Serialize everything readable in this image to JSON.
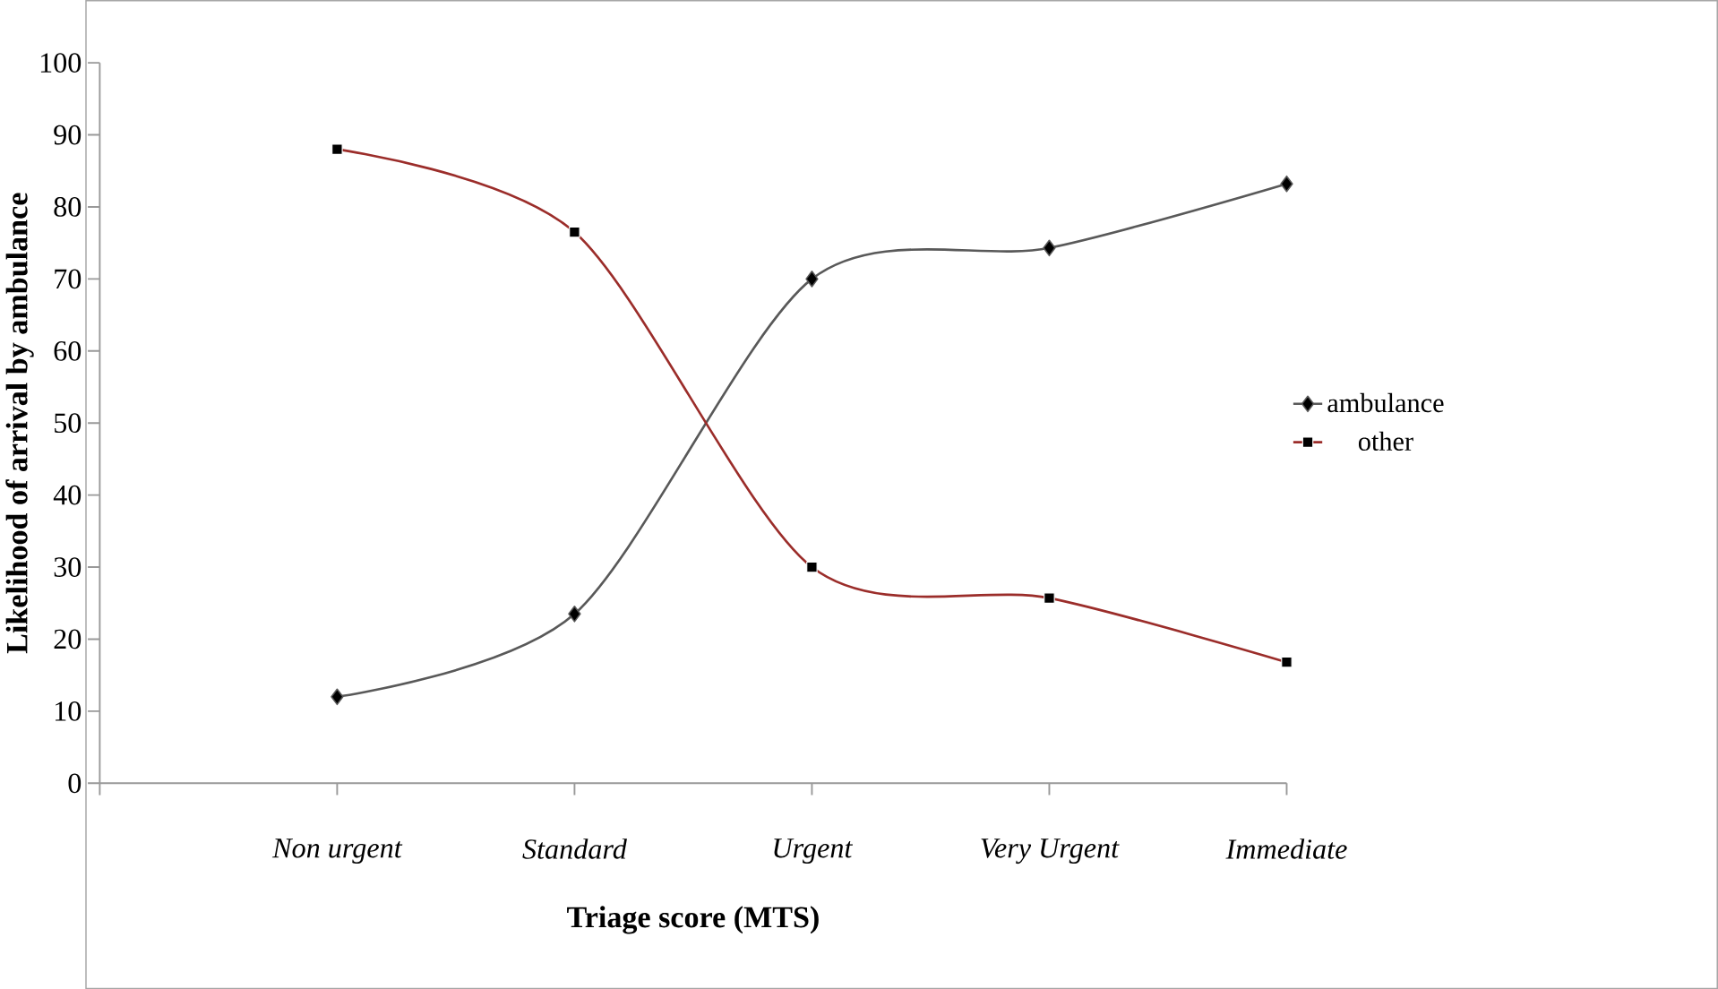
{
  "chart_data": {
    "type": "line",
    "xlabel": "Triage score (MTS)",
    "ylabel": "Likelihood of arrival by ambulance",
    "categories": [
      "Non urgent",
      "Standard",
      "Urgent",
      "Very Urgent",
      "Immediate"
    ],
    "series": [
      {
        "name": "ambulance",
        "color": "#595959",
        "marker": "diamond",
        "values": [
          12,
          23.5,
          70,
          74.3,
          83.2
        ]
      },
      {
        "name": "other",
        "color": "#9b2d2a",
        "marker": "square",
        "values": [
          88,
          76.5,
          30,
          25.7,
          16.8
        ]
      }
    ],
    "ylim": [
      0,
      100
    ],
    "yticks": [
      0,
      10,
      20,
      30,
      40,
      50,
      60,
      70,
      80,
      90,
      100
    ],
    "grid": false,
    "legend": "right"
  }
}
